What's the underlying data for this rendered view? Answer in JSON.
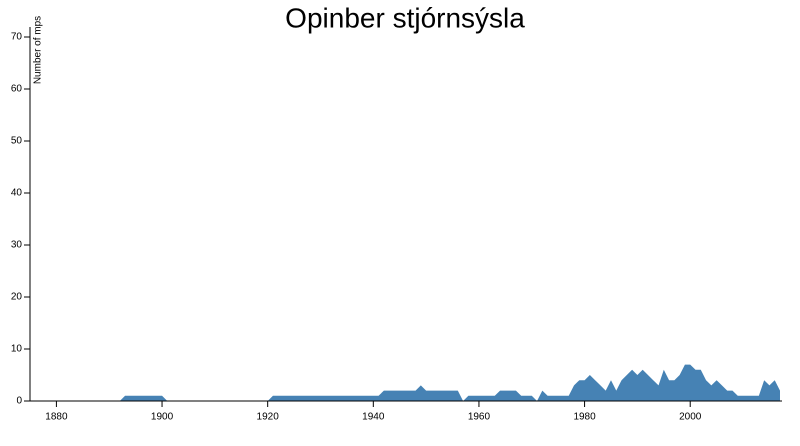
{
  "chart_data": {
    "type": "area",
    "title": "Opinber stjórnsýsla",
    "y_label": "Number of mps",
    "color": "#4682b4",
    "x": [
      1875,
      1876,
      1877,
      1878,
      1879,
      1880,
      1881,
      1882,
      1883,
      1884,
      1885,
      1886,
      1887,
      1888,
      1889,
      1890,
      1891,
      1892,
      1893,
      1894,
      1895,
      1896,
      1897,
      1898,
      1899,
      1900,
      1901,
      1902,
      1903,
      1904,
      1905,
      1906,
      1907,
      1908,
      1909,
      1910,
      1911,
      1912,
      1913,
      1914,
      1915,
      1916,
      1917,
      1918,
      1919,
      1920,
      1921,
      1922,
      1923,
      1924,
      1925,
      1926,
      1927,
      1928,
      1929,
      1930,
      1931,
      1932,
      1933,
      1934,
      1935,
      1936,
      1937,
      1938,
      1939,
      1940,
      1941,
      1942,
      1943,
      1944,
      1945,
      1946,
      1947,
      1948,
      1949,
      1950,
      1951,
      1952,
      1953,
      1954,
      1955,
      1956,
      1957,
      1958,
      1959,
      1960,
      1961,
      1962,
      1963,
      1964,
      1965,
      1966,
      1967,
      1968,
      1969,
      1970,
      1971,
      1972,
      1973,
      1974,
      1975,
      1976,
      1977,
      1978,
      1979,
      1980,
      1981,
      1982,
      1983,
      1984,
      1985,
      1986,
      1987,
      1988,
      1989,
      1990,
      1991,
      1992,
      1993,
      1994,
      1995,
      1996,
      1997,
      1998,
      1999,
      2000,
      2001,
      2002,
      2003,
      2004,
      2005,
      2006,
      2007,
      2008,
      2009,
      2010,
      2011,
      2012,
      2013,
      2014,
      2015,
      2016,
      2017
    ],
    "values": [
      0,
      0,
      0,
      0,
      0,
      0,
      0,
      0,
      0,
      0,
      0,
      0,
      0,
      0,
      0,
      0,
      0,
      0,
      1,
      1,
      1,
      1,
      1,
      1,
      1,
      1,
      0,
      0,
      0,
      0,
      0,
      0,
      0,
      0,
      0,
      0,
      0,
      0,
      0,
      0,
      0,
      0,
      0,
      0,
      0,
      0,
      1,
      1,
      1,
      1,
      1,
      1,
      1,
      1,
      1,
      1,
      1,
      1,
      1,
      1,
      1,
      1,
      1,
      1,
      1,
      1,
      1,
      2,
      2,
      2,
      2,
      2,
      2,
      2,
      3,
      2,
      2,
      2,
      2,
      2,
      2,
      2,
      0,
      1,
      1,
      1,
      1,
      1,
      1,
      2,
      2,
      2,
      2,
      1,
      1,
      1,
      0,
      2,
      1,
      1,
      1,
      1,
      1,
      3,
      4,
      4,
      5,
      4,
      3,
      2,
      4,
      2,
      4,
      5,
      6,
      5,
      6,
      5,
      4,
      3,
      6,
      4,
      4,
      5,
      7,
      7,
      6,
      6,
      4,
      3,
      4,
      3,
      2,
      2,
      1,
      1,
      1,
      1,
      1,
      4,
      3,
      4,
      2
    ],
    "xlim": [
      1875,
      2017
    ],
    "xticks": [
      1880,
      1900,
      1920,
      1940,
      1960,
      1980,
      2000
    ],
    "ylim": [
      0,
      70
    ],
    "yticks": [
      0,
      10,
      20,
      30,
      40,
      50,
      60,
      70
    ]
  }
}
